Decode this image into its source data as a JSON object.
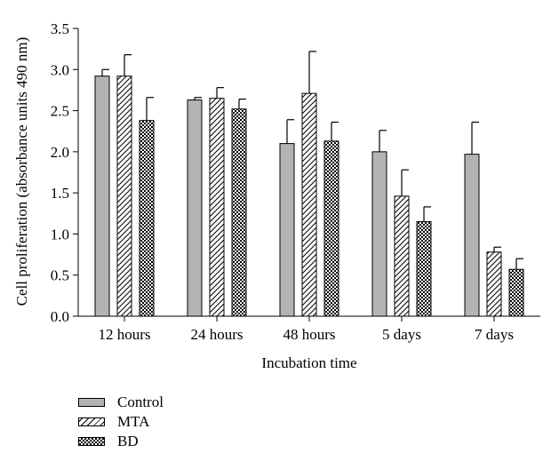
{
  "chart_data": {
    "type": "bar",
    "title": "",
    "xlabel": "Incubation time",
    "ylabel": "Cell proliferation (absorbance units 490 nm)",
    "ylim": [
      0,
      3.5
    ],
    "yticks": [
      "0.0",
      "0.5",
      "1.0",
      "1.5",
      "2.0",
      "2.5",
      "3.0",
      "3.5"
    ],
    "ytick_values": [
      0,
      0.5,
      1.0,
      1.5,
      2.0,
      2.5,
      3.0,
      3.5
    ],
    "categories": [
      "12 hours",
      "24 hours",
      "48 hours",
      "5 days",
      "7 days"
    ],
    "series": [
      {
        "name": "Control",
        "values": [
          2.92,
          2.63,
          2.1,
          2.0,
          1.97
        ],
        "errors": [
          0.08,
          0.03,
          0.29,
          0.26,
          0.39
        ],
        "fill": "#b3b3b3",
        "pattern": "solid"
      },
      {
        "name": "MTA",
        "values": [
          2.92,
          2.65,
          2.71,
          1.46,
          0.78
        ],
        "errors": [
          0.26,
          0.13,
          0.51,
          0.32,
          0.06
        ],
        "fill": "#ffffff",
        "pattern": "diagonal-hatch"
      },
      {
        "name": "BD",
        "values": [
          2.38,
          2.52,
          2.13,
          1.15,
          0.57
        ],
        "errors": [
          0.28,
          0.12,
          0.23,
          0.18,
          0.13
        ],
        "fill": "#ffffff",
        "pattern": "checkerboard"
      }
    ],
    "legend_position": "below-left",
    "grid": false
  }
}
